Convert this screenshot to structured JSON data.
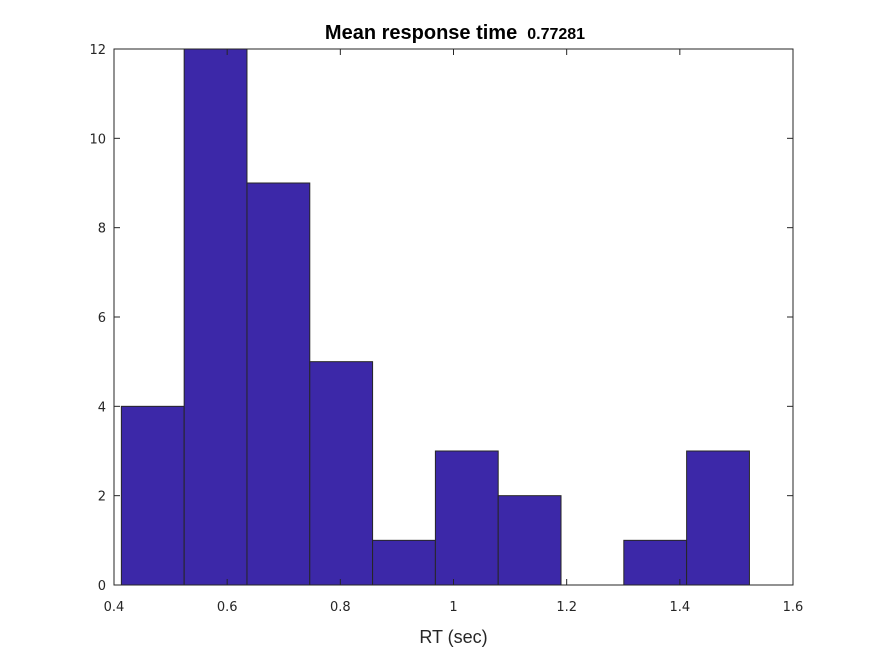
{
  "chart_data": {
    "type": "bar",
    "title": "Mean response time",
    "title_value": "0.77281",
    "xlabel": "RT (sec)",
    "ylabel": "",
    "xlim": [
      0.4,
      1.6
    ],
    "ylim": [
      0,
      12
    ],
    "xticks": [
      "0.4",
      "0.6",
      "0.8",
      "1",
      "1.2",
      "1.4",
      "1.6"
    ],
    "yticks": [
      "0",
      "2",
      "4",
      "6",
      "8",
      "10",
      "12"
    ],
    "bin_edges": [
      0.413,
      0.524,
      0.635,
      0.746,
      0.857,
      0.968,
      1.079,
      1.19,
      1.301,
      1.412,
      1.523
    ],
    "counts": [
      4,
      12,
      9,
      5,
      1,
      3,
      2,
      0,
      1,
      3
    ],
    "grid": false,
    "bar_color": "#3c28a8",
    "edge_color": "#262626"
  }
}
